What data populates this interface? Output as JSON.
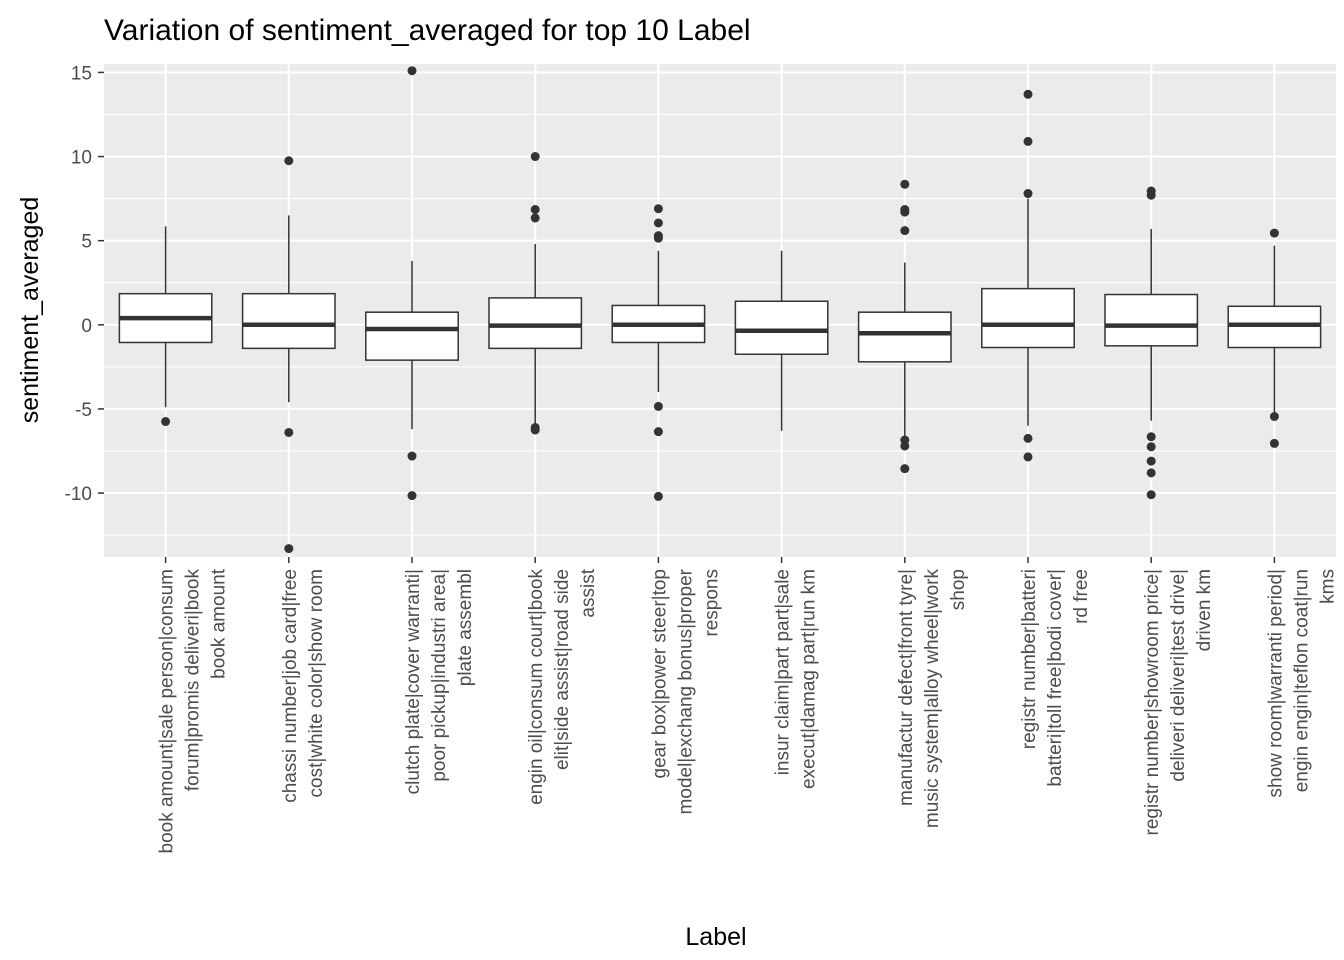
{
  "chart_data": {
    "type": "box",
    "title": "Variation of  sentiment_averaged for top 10 Label",
    "xlabel": "Label",
    "ylabel": "sentiment_averaged",
    "ylim": [
      -13.8,
      15.5
    ],
    "yticks": [
      15,
      10,
      5,
      0,
      -5,
      -10
    ],
    "yticklabels": [
      "15",
      "10",
      "5",
      "0",
      "-5",
      "-10"
    ],
    "grid": true,
    "legend": "none",
    "colors": {
      "panel": "#ebebeb",
      "grid": "#ffffff",
      "box_fill": "#ffffff",
      "box_line": "#333333",
      "point": "#333333"
    },
    "categories": [
      [
        "book amount|sale person|consum",
        "forum|promis deliveri|book",
        "book amount"
      ],
      [
        "chassi number|job card|free",
        "cost|white color|show room"
      ],
      [
        "clutch plate|cover warranti|",
        "poor pickup|industri area|",
        "plate assembl"
      ],
      [
        "engin oil|consum court|book",
        "elit|side assist|road side",
        "assist"
      ],
      [
        "gear box|power steer|top",
        "model|exchang bonus|proper",
        "respons"
      ],
      [
        "insur claim|part part|sale",
        "execut|damag part|run km"
      ],
      [
        "manufactur defect|front tyre|",
        "music system|alloy wheel|work",
        "shop"
      ],
      [
        "registr number|batteri",
        "batteri|toll free|bodi cover|",
        "rd free"
      ],
      [
        "registr number|showroom price|",
        "deliveri deliveri|test drive|",
        "driven km"
      ],
      [
        "show room|warranti period|",
        "engin engin|teflon coat|run",
        "kms"
      ]
    ],
    "boxes": [
      {
        "q1": -1.05,
        "median": 0.4,
        "q3": 1.85,
        "whisker_low": -4.9,
        "whisker_high": 5.85,
        "outliers": [
          -5.75
        ]
      },
      {
        "q1": -1.4,
        "median": 0.0,
        "q3": 1.85,
        "whisker_low": -4.6,
        "whisker_high": 6.5,
        "outliers": [
          9.75,
          -6.4,
          -13.3
        ]
      },
      {
        "q1": -2.1,
        "median": -0.25,
        "q3": 0.75,
        "whisker_low": -6.2,
        "whisker_high": 3.8,
        "outliers": [
          15.1,
          -7.8,
          -10.15
        ]
      },
      {
        "q1": -1.4,
        "median": -0.05,
        "q3": 1.6,
        "whisker_low": -5.9,
        "whisker_high": 4.8,
        "outliers": [
          10.0,
          6.85,
          6.35,
          -6.1,
          -6.25
        ]
      },
      {
        "q1": -1.05,
        "median": 0.0,
        "q3": 1.15,
        "whisker_low": -4.0,
        "whisker_high": 4.4,
        "outliers": [
          6.9,
          6.05,
          5.3,
          5.15,
          -4.85,
          -6.35,
          -10.2
        ]
      },
      {
        "q1": -1.75,
        "median": -0.35,
        "q3": 1.4,
        "whisker_low": -6.3,
        "whisker_high": 4.4,
        "outliers": []
      },
      {
        "q1": -2.2,
        "median": -0.5,
        "q3": 0.75,
        "whisker_low": -6.7,
        "whisker_high": 3.7,
        "outliers": [
          8.35,
          6.85,
          6.7,
          5.6,
          -6.85,
          -7.2,
          -8.55
        ]
      },
      {
        "q1": -1.35,
        "median": 0.0,
        "q3": 2.15,
        "whisker_low": -6.0,
        "whisker_high": 7.5,
        "outliers": [
          13.7,
          10.9,
          7.8,
          -6.75,
          -7.85
        ]
      },
      {
        "q1": -1.25,
        "median": -0.05,
        "q3": 1.8,
        "whisker_low": -5.7,
        "whisker_high": 5.7,
        "outliers": [
          7.95,
          7.7,
          -6.65,
          -7.25,
          -8.1,
          -8.8,
          -10.1
        ]
      },
      {
        "q1": -1.35,
        "median": 0.0,
        "q3": 1.1,
        "whisker_low": -5.2,
        "whisker_high": 4.7,
        "outliers": [
          5.45,
          -5.45,
          -7.05
        ]
      }
    ]
  }
}
